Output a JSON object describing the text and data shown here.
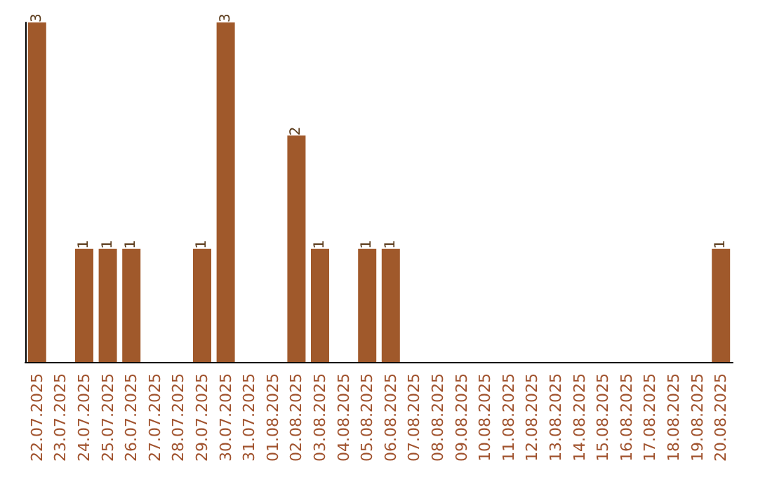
{
  "chart_data": {
    "type": "bar",
    "categories": [
      "22.07.2025",
      "23.07.2025",
      "24.07.2025",
      "25.07.2025",
      "26.07.2025",
      "27.07.2025",
      "28.07.2025",
      "29.07.2025",
      "30.07.2025",
      "31.07.2025",
      "01.08.2025",
      "02.08.2025",
      "03.08.2025",
      "04.08.2025",
      "05.08.2025",
      "06.08.2025",
      "07.08.2025",
      "08.08.2025",
      "09.08.2025",
      "10.08.2025",
      "11.08.2025",
      "12.08.2025",
      "13.08.2025",
      "14.08.2025",
      "15.08.2025",
      "16.08.2025",
      "17.08.2025",
      "18.08.2025",
      "19.08.2025",
      "20.08.2025"
    ],
    "values": [
      3,
      0,
      1,
      1,
      1,
      0,
      0,
      1,
      3,
      0,
      0,
      2,
      1,
      0,
      1,
      1,
      0,
      0,
      0,
      0,
      0,
      0,
      0,
      0,
      0,
      0,
      0,
      0,
      0,
      1
    ],
    "value_labels": [
      "3",
      null,
      "1",
      "1",
      "1",
      null,
      null,
      "1",
      "3",
      null,
      null,
      "2",
      "1",
      null,
      "1",
      "1",
      null,
      null,
      null,
      null,
      null,
      null,
      null,
      null,
      null,
      null,
      null,
      null,
      null,
      "1"
    ],
    "color": "#a0592b",
    "tick_labels": "x"
  }
}
